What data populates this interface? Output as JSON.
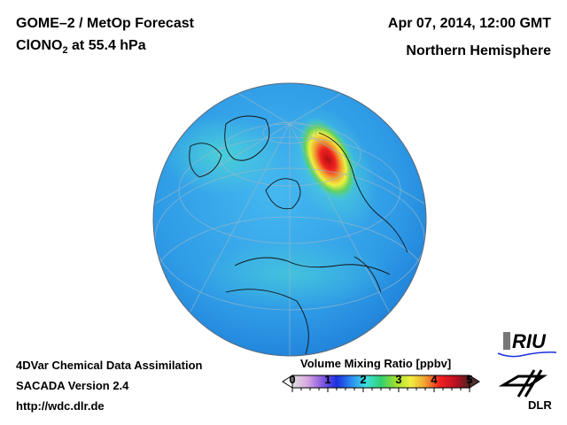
{
  "header": {
    "title_line1": "GOME–2 / MetOp Forecast",
    "species_main": "ClONO",
    "species_sub": "2",
    "species_rest": " at 55.4 hPa",
    "datetime": "Apr 07, 2014, 12:00 GMT",
    "region": "Northern Hemisphere"
  },
  "footer": {
    "line1": "4DVar Chemical Data Assimilation",
    "line2": "SACADA Version 2.4",
    "line3": "http://wdc.dlr.de"
  },
  "colorbar": {
    "title": "Volume Mixing Ratio [ppbv]",
    "min": 0,
    "max": 5,
    "ticks": [
      "0",
      "1",
      "2",
      "3",
      "4",
      "5"
    ],
    "colors": [
      "#e0e0e0",
      "#d8a8e0",
      "#8a5ce0",
      "#1a2fe0",
      "#2a8cf0",
      "#40e0e0",
      "#30d070",
      "#a0e030",
      "#f0f040",
      "#f0a030",
      "#f02020",
      "#c01020",
      "#502020"
    ]
  },
  "logos": {
    "riu": "RIU",
    "dlr": "DLR"
  },
  "map": {
    "projection": "orthographic",
    "hotspot_max_ppbv": 5
  }
}
